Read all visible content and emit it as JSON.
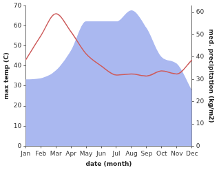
{
  "chart_data": {
    "type": "line",
    "x_label": "date (month)",
    "y_label": "max temp (C)",
    "y2_label": "med. precipitation (kg/m2)",
    "categories": [
      "Jan",
      "Feb",
      "Mar",
      "Apr",
      "May",
      "Jun",
      "Jul",
      "Aug",
      "Sep",
      "Oct",
      "Nov",
      "Dec"
    ],
    "series": [
      {
        "name": "med. precipitation",
        "type": "area",
        "axis": "y2",
        "color": "#aab8f0",
        "values": [
          30,
          30.5,
          34,
          43,
          56,
          56,
          56,
          61,
          53,
          40,
          37,
          25
        ]
      },
      {
        "name": "max temp",
        "type": "line",
        "axis": "y",
        "color": "#cd5c5c",
        "values": [
          43,
          55,
          66,
          57,
          46,
          40,
          35.5,
          36,
          35,
          37.5,
          36,
          43
        ]
      }
    ],
    "ylim": [
      0,
      70
    ],
    "yticks": [
      0,
      10,
      20,
      30,
      40,
      50,
      60,
      70
    ],
    "y2lim": [
      0,
      63
    ],
    "y2ticks": [
      0,
      10,
      20,
      30,
      40,
      50,
      60
    ],
    "grid": false
  }
}
